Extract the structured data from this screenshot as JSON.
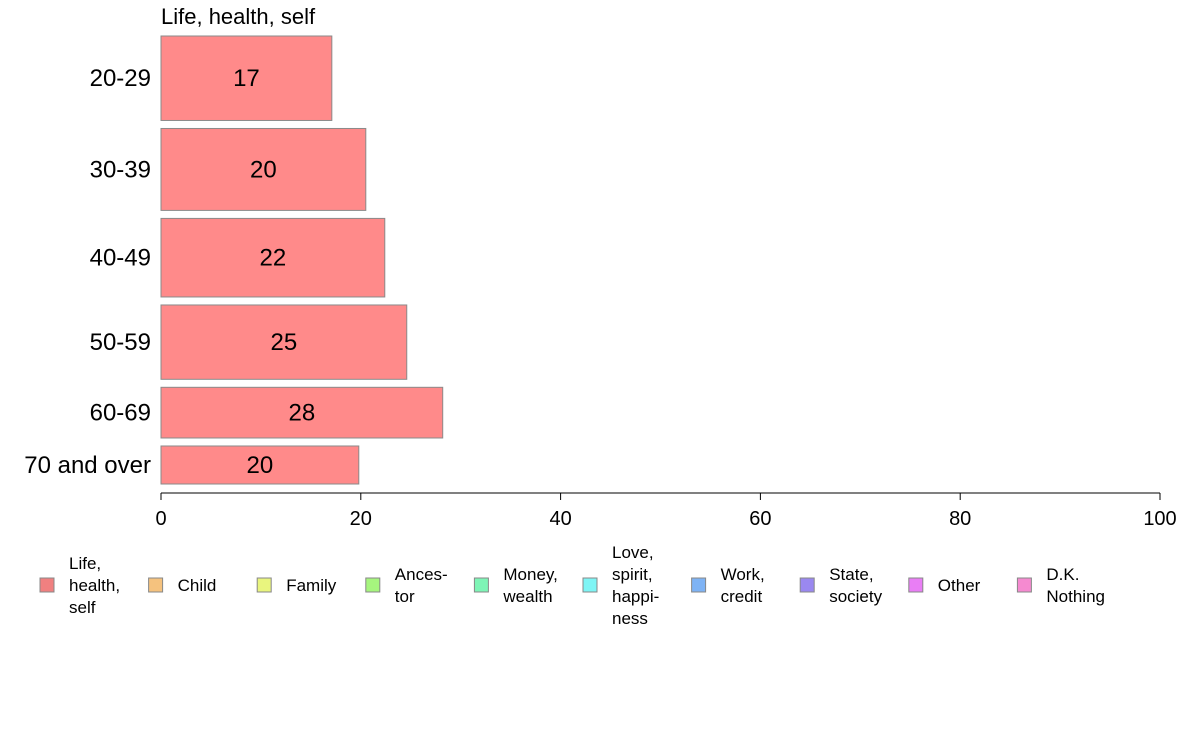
{
  "chart_data": {
    "type": "bar",
    "orientation": "horizontal",
    "title": "Life, health, self",
    "categories": [
      "20-29",
      "30-39",
      "40-49",
      "50-59",
      "60-69",
      "70 and over"
    ],
    "series": [
      {
        "name": "Life, health, self",
        "values": [
          17,
          20,
          22,
          25,
          28,
          20
        ],
        "display_values": [
          17.1,
          20.5,
          22.4,
          24.6,
          28.2,
          19.8
        ]
      }
    ],
    "category_weights": [
      1.0,
      0.97,
      0.93,
      0.88,
      0.6,
      0.45
    ],
    "xlim": [
      0,
      100
    ],
    "xticks": [
      0,
      20,
      40,
      60,
      80,
      100
    ],
    "grid": false,
    "legend_position": "bottom",
    "legend": [
      {
        "label": "Life,\nhealth,\nself",
        "color": "#f08080"
      },
      {
        "label": "Child",
        "color": "#f5c27e"
      },
      {
        "label": "Family",
        "color": "#e9f57e"
      },
      {
        "label": "Ances-\ntor",
        "color": "#a6f57e"
      },
      {
        "label": "Money,\nwealth",
        "color": "#7ef5b6"
      },
      {
        "label": "Love,\nspirit,\nhappi-\nness",
        "color": "#7ef5f5"
      },
      {
        "label": "Work,\ncredit",
        "color": "#7eb3f5"
      },
      {
        "label": "State,\nsociety",
        "color": "#9a88f0"
      },
      {
        "label": "Other",
        "color": "#e97ef5"
      },
      {
        "label": "D.K.\nNothing",
        "color": "#f58ad0"
      }
    ],
    "bar_color": "#ff8a8a",
    "bar_stroke": "#8a8a8a"
  }
}
